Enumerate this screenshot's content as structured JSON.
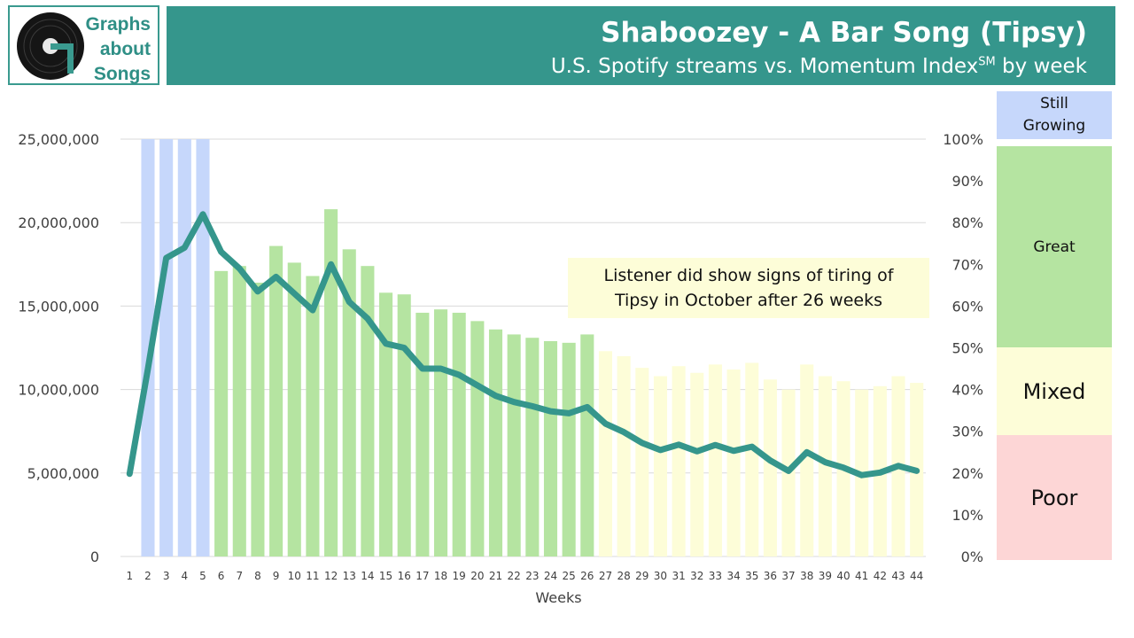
{
  "logo": {
    "line1": "Graphs",
    "line2": "about",
    "line3": "Songs"
  },
  "header": {
    "title": "Shaboozey - A Bar Song (Tipsy)",
    "subtitle": "U.S. Spotify streams vs. Momentum Index",
    "subtitle_sup": "SM",
    "subtitle_end": " by week"
  },
  "callout": {
    "line1": "Listener did show signs of tiring of",
    "line2": "Tipsy in October after 26 weeks"
  },
  "legend": {
    "still_growing_1": "Still",
    "still_growing_2": "Growing",
    "great": "Great",
    "mixed": "Mixed",
    "poor": "Poor"
  },
  "colors": {
    "still_growing": "#c6d7fb",
    "great": "#b5e4a1",
    "mixed": "#fdfdd8",
    "poor": "#fdd6d6",
    "line": "#35968c",
    "header": "#35968c"
  },
  "chart_data": {
    "type": "bar+line",
    "xlabel": "Weeks",
    "categories": [
      "1",
      "2",
      "3",
      "4",
      "5",
      "6",
      "7",
      "8",
      "9",
      "10",
      "11",
      "12",
      "13",
      "14",
      "15",
      "16",
      "17",
      "18",
      "19",
      "20",
      "21",
      "22",
      "23",
      "24",
      "25",
      "26",
      "27",
      "28",
      "29",
      "30",
      "31",
      "32",
      "33",
      "34",
      "35",
      "36",
      "37",
      "38",
      "39",
      "40",
      "41",
      "42",
      "43",
      "44"
    ],
    "ylim_left": [
      0,
      25000000
    ],
    "yticks_left": [
      "0",
      "5,000,000",
      "10,000,000",
      "15,000,000",
      "20,000,000",
      "25,000,000"
    ],
    "ylim_right": [
      0,
      100
    ],
    "yticks_right": [
      "0%",
      "10%",
      "20%",
      "30%",
      "40%",
      "50%",
      "60%",
      "70%",
      "80%",
      "90%",
      "100%"
    ],
    "series": [
      {
        "name": "U.S. Spotify streams",
        "type": "bar",
        "axis": "left",
        "values": [
          0,
          25000000,
          25000000,
          25000000,
          25000000,
          17100000,
          17400000,
          16400000,
          18600000,
          17600000,
          16800000,
          20800000,
          18400000,
          17400000,
          15800000,
          15700000,
          14600000,
          14800000,
          14600000,
          14100000,
          13600000,
          13300000,
          13100000,
          12900000,
          12800000,
          13300000,
          12300000,
          12000000,
          11300000,
          10800000,
          11400000,
          11000000,
          11500000,
          11200000,
          11600000,
          10600000,
          10000000,
          11500000,
          10800000,
          10500000,
          10000000,
          10200000,
          10800000,
          10400000
        ],
        "zones": [
          "still",
          "still",
          "still",
          "still",
          "still",
          "great",
          "great",
          "great",
          "great",
          "great",
          "great",
          "great",
          "great",
          "great",
          "great",
          "great",
          "great",
          "great",
          "great",
          "great",
          "great",
          "great",
          "great",
          "great",
          "great",
          "great",
          "mixed",
          "mixed",
          "mixed",
          "mixed",
          "mixed",
          "mixed",
          "mixed",
          "mixed",
          "mixed",
          "mixed",
          "mixed",
          "mixed",
          "mixed",
          "mixed",
          "mixed",
          "mixed",
          "mixed",
          "mixed"
        ]
      },
      {
        "name": "Momentum Index",
        "type": "line",
        "axis": "right",
        "values": [
          19.8,
          45,
          71.5,
          74,
          82,
          73,
          69,
          63.5,
          67,
          63,
          59,
          70,
          61,
          57,
          51,
          50,
          45,
          45,
          43.5,
          41,
          38.5,
          37,
          36,
          34.8,
          34.3,
          35.8,
          31.8,
          29.8,
          27.2,
          25.5,
          26.8,
          25.2,
          26.7,
          25.3,
          26.3,
          23,
          20.5,
          25,
          22.6,
          21.3,
          19.5,
          20.1,
          21.7,
          20.5
        ]
      }
    ]
  }
}
